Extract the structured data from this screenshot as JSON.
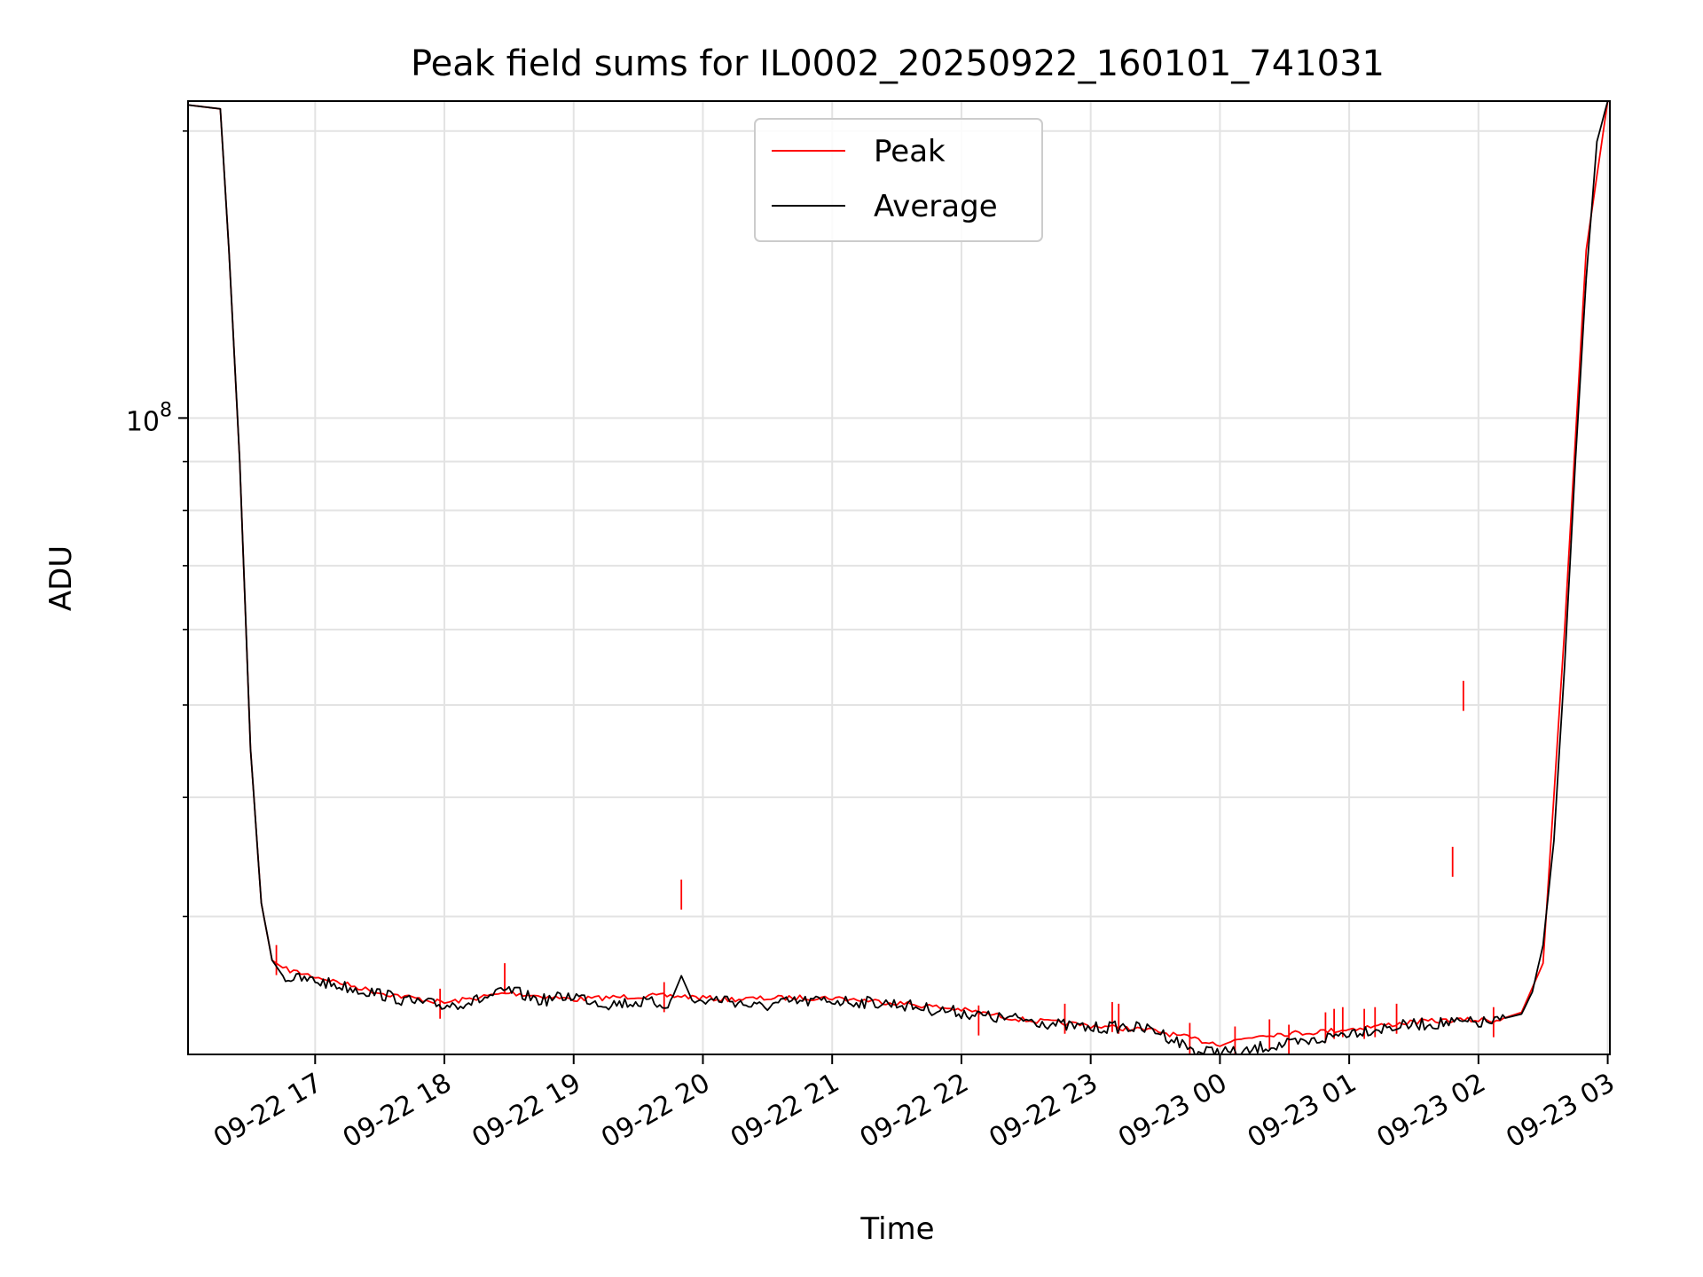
{
  "chart_data": {
    "type": "line",
    "title": "Peak field sums for IL0002_20250922_160101_741031",
    "xlabel": "Time",
    "ylabel": "ADU",
    "y_scale": "log",
    "ylim": [
      21500000,
      215000000
    ],
    "xlim": [
      "2025-09-22 16:01",
      "2025-09-23 03:01"
    ],
    "grid": true,
    "legend_position": "top-center",
    "x_tick_labels": [
      "09-22 17",
      "09-22 18",
      "09-22 19",
      "09-22 20",
      "09-22 21",
      "09-22 22",
      "09-22 23",
      "09-23 00",
      "09-23 01",
      "09-23 02",
      "09-23 03"
    ],
    "x_tick_times": [
      "2025-09-22 17:00",
      "2025-09-22 18:00",
      "2025-09-22 19:00",
      "2025-09-22 20:00",
      "2025-09-22 21:00",
      "2025-09-22 22:00",
      "2025-09-22 23:00",
      "2025-09-23 00:00",
      "2025-09-23 01:00",
      "2025-09-23 02:00",
      "2025-09-23 03:00"
    ],
    "y_tick_label_base": "10",
    "y_tick_label_exp": "8",
    "y_major_tick": 100000000,
    "y_minor_ticks": [
      30000000,
      40000000,
      50000000,
      60000000,
      70000000,
      80000000,
      90000000,
      200000000
    ],
    "series": [
      {
        "name": "Peak",
        "color": "#ff0000",
        "x": [
          "2025-09-22 16:01",
          "2025-09-22 16:16",
          "2025-09-22 16:20",
          "2025-09-22 16:25",
          "2025-09-22 16:30",
          "2025-09-22 16:35",
          "2025-09-22 16:40",
          "2025-09-22 16:45",
          "2025-09-22 17:00",
          "2025-09-22 17:30",
          "2025-09-22 18:00",
          "2025-09-22 18:30",
          "2025-09-22 19:00",
          "2025-09-22 19:30",
          "2025-09-22 19:50",
          "2025-09-22 20:10",
          "2025-09-22 20:40",
          "2025-09-22 21:00",
          "2025-09-22 21:30",
          "2025-09-22 22:00",
          "2025-09-22 22:30",
          "2025-09-22 23:00",
          "2025-09-22 23:30",
          "2025-09-22 23:50",
          "2025-09-23 00:00",
          "2025-09-23 00:20",
          "2025-09-23 00:40",
          "2025-09-23 01:00",
          "2025-09-23 01:30",
          "2025-09-23 01:50",
          "2025-09-23 02:10",
          "2025-09-23 02:20",
          "2025-09-23 02:30",
          "2025-09-23 02:40",
          "2025-09-23 02:50",
          "2025-09-23 03:00"
        ],
        "values": [
          213000000,
          211000000,
          150000000,
          90000000,
          45000000,
          31000000,
          27000000,
          26500000,
          26000000,
          25000000,
          24400000,
          25000000,
          24600000,
          24800000,
          24800000,
          24600000,
          24700000,
          24700000,
          24400000,
          24000000,
          23400000,
          23100000,
          22800000,
          22300000,
          22100000,
          22600000,
          22700000,
          22900000,
          23300000,
          23400000,
          23400000,
          23800000,
          26800000,
          60000000,
          150000000,
          215000000
        ],
        "spikes": [
          {
            "x": "2025-09-22 16:42",
            "value": 28000000
          },
          {
            "x": "2025-09-22 17:58",
            "value": 25200000
          },
          {
            "x": "2025-09-22 18:28",
            "value": 26800000
          },
          {
            "x": "2025-09-22 19:42",
            "value": 25600000
          },
          {
            "x": "2025-09-22 19:50",
            "value": 32800000
          },
          {
            "x": "2025-09-22 22:08",
            "value": 24200000
          },
          {
            "x": "2025-09-22 22:48",
            "value": 24300000
          },
          {
            "x": "2025-09-22 23:10",
            "value": 24400000
          },
          {
            "x": "2025-09-22 23:13",
            "value": 24300000
          },
          {
            "x": "2025-09-22 23:46",
            "value": 23200000
          },
          {
            "x": "2025-09-23 00:07",
            "value": 23000000
          },
          {
            "x": "2025-09-23 00:23",
            "value": 23400000
          },
          {
            "x": "2025-09-23 00:32",
            "value": 23100000
          },
          {
            "x": "2025-09-23 00:49",
            "value": 23800000
          },
          {
            "x": "2025-09-23 00:53",
            "value": 24000000
          },
          {
            "x": "2025-09-23 00:57",
            "value": 24100000
          },
          {
            "x": "2025-09-23 01:07",
            "value": 24000000
          },
          {
            "x": "2025-09-23 01:12",
            "value": 24100000
          },
          {
            "x": "2025-09-23 01:22",
            "value": 24300000
          },
          {
            "x": "2025-09-23 01:48",
            "value": 35500000
          },
          {
            "x": "2025-09-23 01:53",
            "value": 53000000
          },
          {
            "x": "2025-09-23 02:07",
            "value": 24100000
          }
        ]
      },
      {
        "name": "Average",
        "color": "#000000",
        "x": [
          "2025-09-22 16:01",
          "2025-09-22 16:16",
          "2025-09-22 16:20",
          "2025-09-22 16:25",
          "2025-09-22 16:30",
          "2025-09-22 16:35",
          "2025-09-22 16:40",
          "2025-09-22 16:45",
          "2025-09-22 17:00",
          "2025-09-22 17:15",
          "2025-09-22 17:30",
          "2025-09-22 17:45",
          "2025-09-22 18:00",
          "2025-09-22 18:15",
          "2025-09-22 18:30",
          "2025-09-22 18:45",
          "2025-09-22 19:00",
          "2025-09-22 19:15",
          "2025-09-22 19:30",
          "2025-09-22 19:45",
          "2025-09-22 19:50",
          "2025-09-22 19:55",
          "2025-09-22 20:10",
          "2025-09-22 20:25",
          "2025-09-22 20:40",
          "2025-09-22 21:00",
          "2025-09-22 21:15",
          "2025-09-22 21:30",
          "2025-09-22 21:45",
          "2025-09-22 22:00",
          "2025-09-22 22:15",
          "2025-09-22 22:30",
          "2025-09-22 22:45",
          "2025-09-22 23:00",
          "2025-09-22 23:15",
          "2025-09-22 23:30",
          "2025-09-22 23:40",
          "2025-09-22 23:50",
          "2025-09-23 00:00",
          "2025-09-23 00:10",
          "2025-09-23 00:20",
          "2025-09-23 00:30",
          "2025-09-23 00:40",
          "2025-09-23 00:50",
          "2025-09-23 01:00",
          "2025-09-23 01:15",
          "2025-09-23 01:30",
          "2025-09-23 01:45",
          "2025-09-23 02:00",
          "2025-09-23 02:10",
          "2025-09-23 02:20",
          "2025-09-23 02:25",
          "2025-09-23 02:30",
          "2025-09-23 02:35",
          "2025-09-23 02:40",
          "2025-09-23 02:45",
          "2025-09-23 02:50",
          "2025-09-23 02:55",
          "2025-09-23 03:00"
        ],
        "values": [
          213000000,
          211000000,
          150000000,
          90000000,
          45000000,
          31000000,
          27000000,
          26000000,
          25800000,
          25400000,
          25000000,
          24500000,
          24300000,
          24600000,
          25200000,
          24600000,
          24900000,
          24400000,
          24500000,
          24400000,
          26000000,
          24500000,
          24700000,
          24200000,
          24500000,
          24600000,
          24500000,
          24400000,
          24100000,
          23900000,
          23600000,
          23500000,
          23200000,
          23000000,
          23100000,
          22900000,
          22300000,
          21700000,
          21800000,
          21600000,
          22000000,
          22100000,
          22200000,
          22500000,
          22800000,
          23000000,
          23200000,
          23300000,
          23300000,
          23400000,
          23700000,
          25000000,
          28000000,
          36000000,
          55000000,
          90000000,
          140000000,
          195000000,
          215000000
        ]
      }
    ]
  }
}
